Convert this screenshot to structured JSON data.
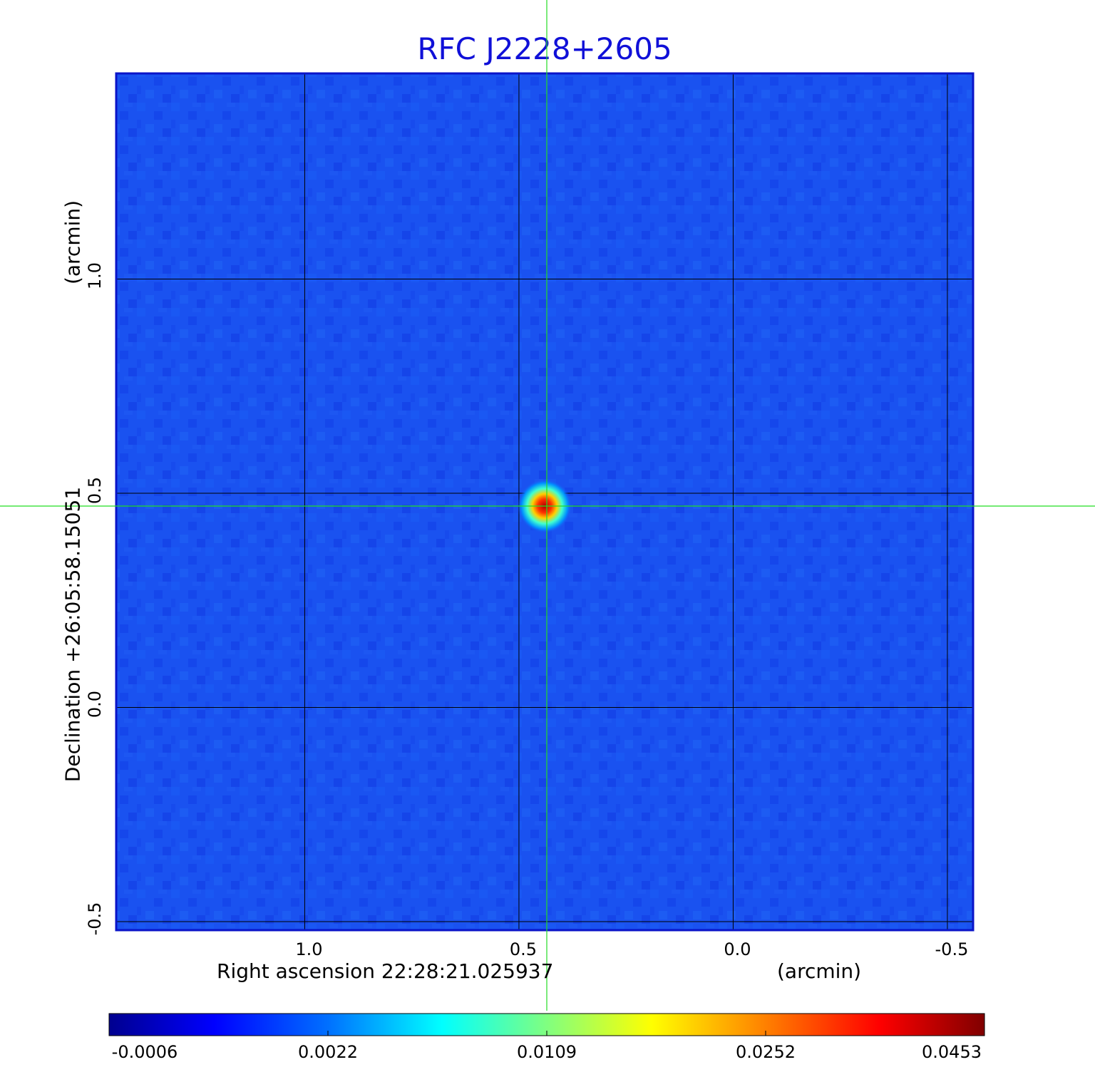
{
  "chart_data": {
    "type": "heatmap",
    "title": "RFC J2228+2605",
    "xlabel": "Right ascension  22:28:21.025937",
    "xunit": "(arcmin)",
    "ylabel": "Declination  +26:05:58.15051",
    "yunit": "(arcmin)",
    "x_ticks": [
      "1.0",
      "0.5",
      "0.0",
      "-0.5"
    ],
    "x_tick_values": [
      1.0,
      0.5,
      0.0,
      -0.5
    ],
    "y_ticks": [
      "-0.5",
      "0.0",
      "0.5",
      "1.0"
    ],
    "y_tick_values": [
      -0.5,
      0.0,
      0.5,
      1.0
    ],
    "xlim": [
      1.44,
      -0.56
    ],
    "ylim": [
      -0.52,
      1.48
    ],
    "grid": true,
    "source": {
      "x": 0.44,
      "y": 0.47,
      "peak": 0.0453
    },
    "crosshair": {
      "x": 0.435,
      "y": 0.47,
      "color": "#22dd22"
    },
    "colorbar": {
      "ticks": [
        "-0.0006",
        "0.0022",
        "0.0109",
        "0.0252",
        "0.0453"
      ],
      "min": -0.0006,
      "max": 0.0453,
      "colormap": "jet"
    },
    "colors": {
      "background": "#1a50f0",
      "frame": "#0a14c8",
      "grid": "#000000",
      "title": "#1010d8"
    }
  }
}
